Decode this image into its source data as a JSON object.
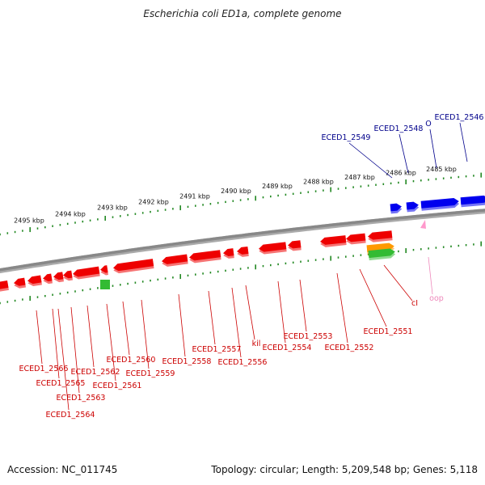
{
  "title": "Escherichia coli ED1a, complete genome",
  "footer": {
    "accession": "Accession: NC_011745",
    "summary": "Topology: circular; Length: 5,209,548 bp; Genes: 5,118"
  },
  "colors": {
    "forward_gene": "#0000ee",
    "reverse_gene": "#ee0000",
    "rna": "#33bb33",
    "orange": "#ff9900",
    "pseudo": "#ff99cc",
    "backbone": "#888888",
    "scale": "#228822"
  },
  "scale_labels": [
    "2485 kbp",
    "2486 kbp",
    "2487 kbp",
    "2488 kbp",
    "2489 kbp",
    "2490 kbp",
    "2491 kbp",
    "2492 kbp",
    "2493 kbp",
    "2494 kbp",
    "2495 kbp"
  ],
  "forward_labels": [
    "ECED1_2546",
    "O",
    "ECED1_2548",
    "ECED1_2549"
  ],
  "reverse_labels": [
    "cI",
    "ECED1_2551",
    "ECED1_2552",
    "ECED1_2553",
    "ECED1_2554",
    "kil",
    "ECED1_2556",
    "ECED1_2557",
    "ECED1_2558",
    "ECED1_2559",
    "ECED1_2560",
    "ECED1_2561",
    "ECED1_2562",
    "ECED1_2563",
    "ECED1_2564",
    "ECED1_2565",
    "ECED1_2566"
  ],
  "pseudo_labels": [
    "oop"
  ]
}
